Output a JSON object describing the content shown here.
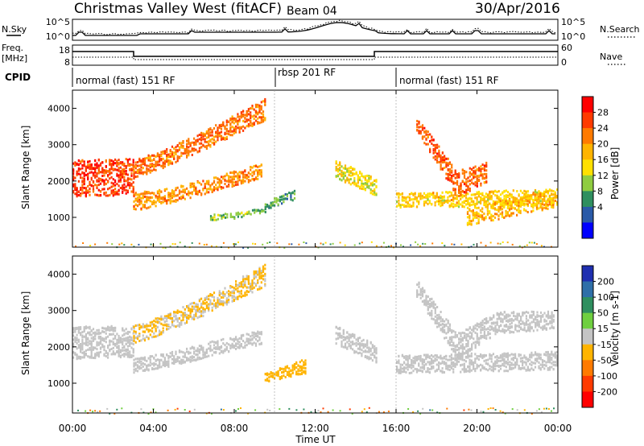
{
  "header": {
    "title": "Christmas Valley West (fitACF)",
    "beam": "Beam 04",
    "date": "30/Apr/2016"
  },
  "nsky_panel": {
    "left_label": "N.Sky",
    "right_label": "N.Search",
    "y_ticks": [
      "10^5",
      "10^0"
    ],
    "right_ticks": [
      "10^5",
      "10^0"
    ]
  },
  "freq_panel": {
    "left_label_1": "Freq.",
    "left_label_2": "[MHz]",
    "right_label": "Nave",
    "y_ticks": [
      "18",
      "8"
    ],
    "right_ticks": [
      "60",
      "0"
    ]
  },
  "cpid": {
    "label": "CPID",
    "segments": [
      {
        "label": "normal (fast) 151 RF",
        "start_h": 0,
        "end_h": 10
      },
      {
        "label": "rbsp 201 RF",
        "start_h": 10,
        "end_h": 16
      },
      {
        "label": "normal (fast) 151 RF",
        "start_h": 16,
        "end_h": 24
      }
    ]
  },
  "axes": {
    "xlabel": "Time UT",
    "x_ticks": [
      "00:00",
      "04:00",
      "08:00",
      "12:00",
      "16:00",
      "20:00",
      "00:00"
    ],
    "ylabel": "Slant Range [km]",
    "y_ticks": [
      "1000",
      "2000",
      "3000",
      "4000"
    ]
  },
  "power_colorbar": {
    "label": "Power [dB]",
    "ticks": [
      "28",
      "24",
      "20",
      "16",
      "12",
      "8",
      "4"
    ],
    "colors": [
      "#ff0000",
      "#ff3a00",
      "#ff7a00",
      "#ffb400",
      "#ffe000",
      "#8fcc40",
      "#2f8f5f",
      "#2a5aa8",
      "#0000ff"
    ]
  },
  "velocity_colorbar": {
    "label": "Velocity [m s-1]",
    "ticks": [
      "200",
      "100",
      "50",
      "15",
      "-15",
      "-50",
      "-100",
      "-200"
    ],
    "colors": [
      "#1f2fb0",
      "#2f6fa8",
      "#2f8f5f",
      "#6fcf3f",
      "#c4c4c4",
      "#ffb400",
      "#ff7a00",
      "#ff3a00",
      "#ff0000"
    ]
  },
  "chart_data": [
    {
      "type": "heatmap",
      "name": "Power",
      "x_range_h": [
        0,
        24
      ],
      "y_range_km": [
        180,
        4500
      ],
      "colorbar_range_db": [
        0,
        32
      ],
      "structures": [
        {
          "x": [
            0,
            3
          ],
          "y_lo": [
            1600,
            1650
          ],
          "y_hi": [
            2600,
            2650
          ],
          "value": 27
        },
        {
          "x": [
            3,
            4.5,
            6.5,
            9.5
          ],
          "y_lo": [
            2100,
            2400,
            2900,
            3700
          ],
          "y_hi": [
            2600,
            2900,
            3400,
            4300
          ],
          "value": 24
        },
        {
          "x": [
            3,
            5,
            7,
            9.3
          ],
          "y_lo": [
            1200,
            1450,
            1750,
            2100
          ],
          "y_hi": [
            1700,
            1850,
            2150,
            2500
          ],
          "value": 22
        },
        {
          "x": [
            6.8,
            8,
            9.5
          ],
          "y_lo": [
            950,
            1000,
            1150
          ],
          "y_hi": [
            1100,
            1150,
            1300
          ],
          "value": 12
        },
        {
          "x": [
            9.5,
            11
          ],
          "y_lo": [
            1250,
            1500
          ],
          "y_hi": [
            1450,
            1800
          ],
          "value": 10
        },
        {
          "x": [
            13,
            15
          ],
          "y_lo": [
            2100,
            1600
          ],
          "y_hi": [
            2600,
            2100
          ],
          "value": 16
        },
        {
          "x": [
            16,
            24
          ],
          "y_lo": [
            1300,
            1350
          ],
          "y_hi": [
            1700,
            1800
          ],
          "value": 18
        },
        {
          "x": [
            17,
            19,
            20.5
          ],
          "y_lo": [
            3400,
            1600,
            2000
          ],
          "y_hi": [
            3800,
            2300,
            2600
          ],
          "value": 25
        },
        {
          "x": [
            19.5,
            23.8
          ],
          "y_lo": [
            800,
            1300
          ],
          "y_hi": [
            1300,
            1800
          ],
          "value": 19
        }
      ]
    },
    {
      "type": "heatmap",
      "name": "Velocity",
      "x_range_h": [
        0,
        24
      ],
      "y_range_km": [
        180,
        4500
      ],
      "colorbar_range_ms": [
        -250,
        250
      ],
      "structures": [
        {
          "x": [
            0,
            3
          ],
          "y_lo": [
            1700,
            1750
          ],
          "y_hi": [
            2600,
            2600
          ],
          "value": 0
        },
        {
          "x": [
            3,
            4.5,
            6.5,
            9.5
          ],
          "y_lo": [
            2100,
            2400,
            2900,
            3700
          ],
          "y_hi": [
            2600,
            2900,
            3400,
            4300
          ],
          "value": -30
        },
        {
          "x": [
            3,
            5,
            7,
            9.3
          ],
          "y_lo": [
            1300,
            1500,
            1800,
            2100
          ],
          "y_hi": [
            1700,
            1900,
            2200,
            2500
          ],
          "value": 0
        },
        {
          "x": [
            9.5,
            11.5
          ],
          "y_lo": [
            1050,
            1300
          ],
          "y_hi": [
            1300,
            1700
          ],
          "value": -60
        },
        {
          "x": [
            13,
            15
          ],
          "y_lo": [
            2100,
            1600
          ],
          "y_hi": [
            2600,
            2100
          ],
          "value": 0
        },
        {
          "x": [
            16,
            24
          ],
          "y_lo": [
            1300,
            1400
          ],
          "y_hi": [
            1800,
            1900
          ],
          "value": 0
        },
        {
          "x": [
            17,
            19,
            21,
            23.8
          ],
          "y_lo": [
            3400,
            1700,
            2400,
            2500
          ],
          "y_hi": [
            3900,
            2400,
            3000,
            3000
          ],
          "value": 0
        }
      ]
    }
  ]
}
